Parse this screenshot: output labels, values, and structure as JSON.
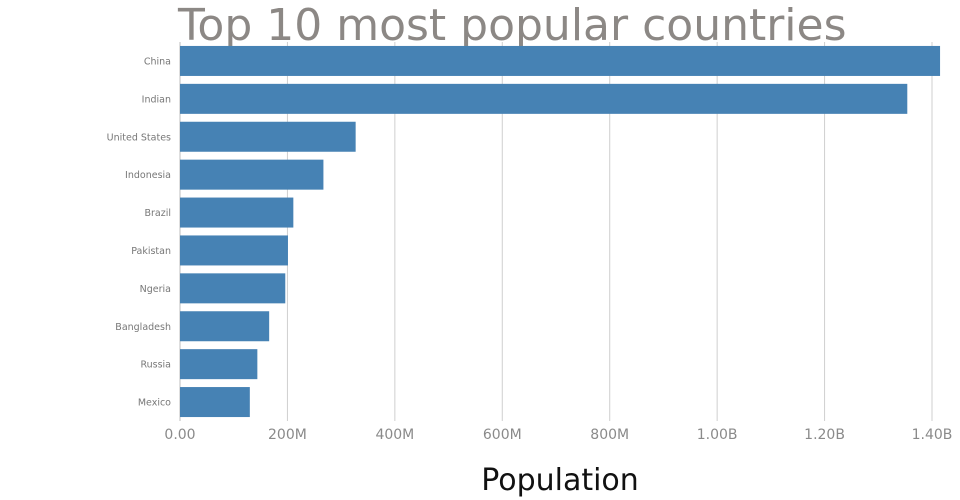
{
  "chart_data": {
    "type": "bar",
    "orientation": "horizontal",
    "title": "Top 10 most popular countries",
    "xlabel": "Population",
    "ylabel": "",
    "categories": [
      "China",
      "Indian",
      "United States",
      "Indonesia",
      "Brazil",
      "Pakistan",
      "Ngeria",
      "Bangladesh",
      "Russia",
      "Mexico"
    ],
    "values": [
      1415000000,
      1354000000,
      327000000,
      267000000,
      211000000,
      201000000,
      196000000,
      166000000,
      144000000,
      130000000
    ],
    "xlim": [
      0,
      1400000000
    ],
    "x_ticks": [
      0,
      200000000,
      400000000,
      600000000,
      800000000,
      1000000000,
      1200000000,
      1400000000
    ],
    "x_tick_labels": [
      "0.00",
      "200M",
      "400M",
      "600M",
      "800M",
      "1.00B",
      "1.20B",
      "1.40B"
    ],
    "grid": true,
    "legend": "none",
    "colors": {
      "bar": "#4682b4",
      "title": "#8c8885",
      "grid": "#cfcfcf"
    }
  }
}
